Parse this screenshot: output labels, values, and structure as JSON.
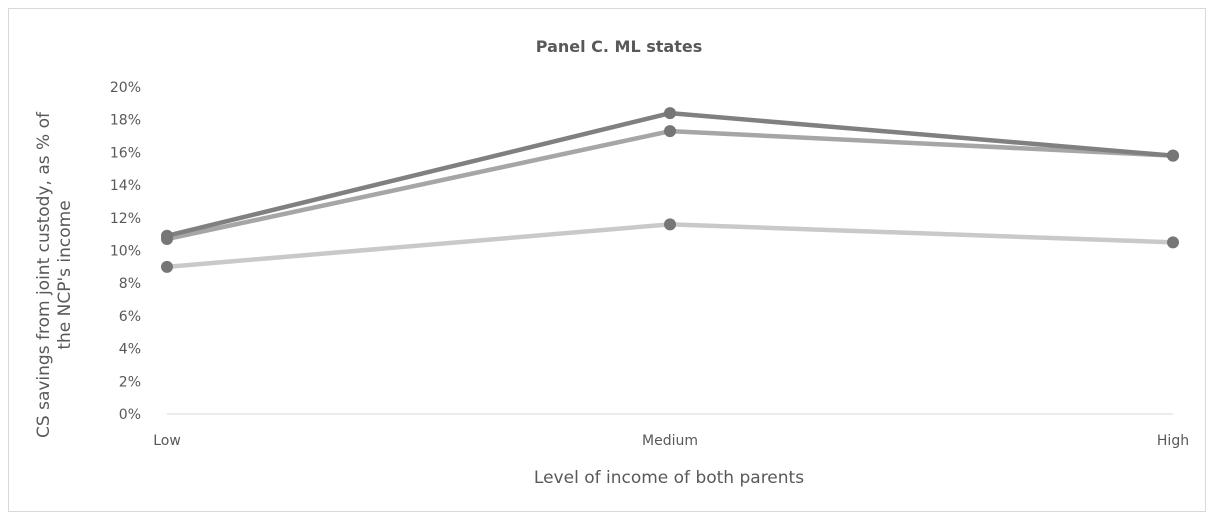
{
  "chart_data": {
    "type": "line",
    "title": "Panel C. ML states",
    "xlabel": "Level of income of both parents",
    "ylabel_lines": [
      "CS savings from joint custody, as % of",
      "the NCP's income"
    ],
    "categories": [
      "Low",
      "Medium",
      "High"
    ],
    "ylim": [
      0,
      20
    ],
    "yticks": [
      0,
      2,
      4,
      6,
      8,
      10,
      12,
      14,
      16,
      18,
      20
    ],
    "ytick_labels": [
      "0%",
      "2%",
      "4%",
      "6%",
      "8%",
      "10%",
      "12%",
      "14%",
      "16%",
      "18%",
      "20%"
    ],
    "grid": false,
    "legend": "none",
    "series": [
      {
        "values": [
          10.9,
          18.4,
          15.8
        ],
        "color": "#808080"
      },
      {
        "values": [
          10.7,
          17.3,
          15.8
        ],
        "color": "#a6a6a6"
      },
      {
        "values": [
          9.0,
          11.6,
          10.5
        ],
        "color": "#c9c9c9"
      }
    ],
    "marker_color": "#767676"
  }
}
